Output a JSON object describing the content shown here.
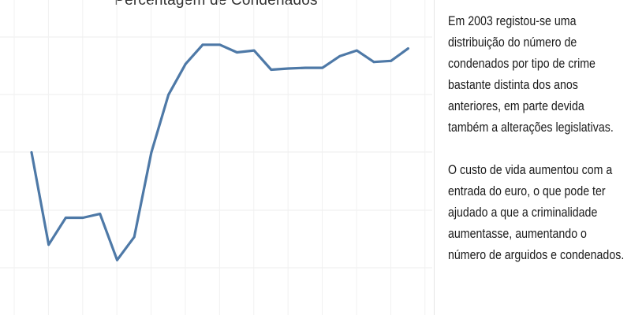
{
  "chart_data": {
    "type": "line",
    "title": "Percentagem de Condenados",
    "xlabel": "",
    "ylabel": "",
    "grid": true,
    "series": [
      {
        "color": "#4e79a7",
        "values": [
          4.0,
          1.6,
          2.3,
          2.3,
          2.4,
          1.2,
          1.8,
          4.0,
          5.5,
          6.3,
          6.8,
          6.8,
          6.6,
          6.65,
          6.15,
          6.18,
          6.2,
          6.2,
          6.5,
          6.65,
          6.35,
          6.38,
          6.7
        ]
      }
    ]
  },
  "notes": {
    "paragraph_1": "Em 2003 registou-se uma distribuição do número de condenados por tipo de crime bastante distinta dos anos anteriores, em parte devida também a alterações legislativas.",
    "paragraph_2": "O custo de vida aumentou com a entrada do euro, o que pode ter ajudado a que a criminalidade aumentasse, aumentando o número de arguidos e condenados."
  }
}
